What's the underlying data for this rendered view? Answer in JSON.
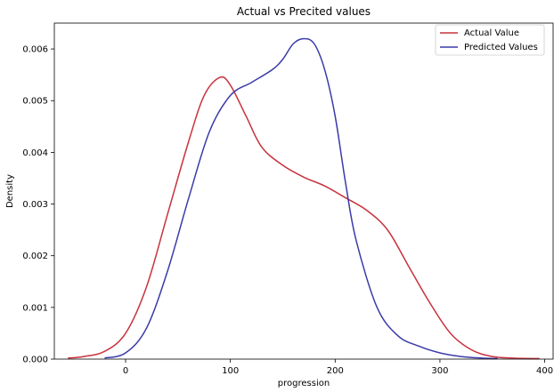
{
  "chart_data": {
    "type": "line",
    "title": "Actual vs Precited values",
    "xlabel": "progression",
    "ylabel": "Density",
    "xlim": [
      -68,
      408
    ],
    "ylim": [
      0,
      0.0065
    ],
    "xticks": [
      0,
      100,
      200,
      300,
      400
    ],
    "yticks": [
      0.0,
      0.001,
      0.002,
      0.003,
      0.004,
      0.005,
      0.006
    ],
    "ytick_labels": [
      "0.000",
      "0.001",
      "0.002",
      "0.003",
      "0.004",
      "0.005",
      "0.006"
    ],
    "grid": false,
    "legend_position": "top-right",
    "series": [
      {
        "name": "Actual Value",
        "color": "#c8323c",
        "x": [
          -55,
          -40,
          -20,
          0,
          20,
          40,
          60,
          75,
          90,
          100,
          115,
          130,
          150,
          170,
          190,
          210,
          230,
          250,
          270,
          290,
          310,
          330,
          350,
          370,
          395
        ],
        "y": [
          2e-05,
          5e-05,
          0.00015,
          0.0005,
          0.0014,
          0.0028,
          0.0042,
          0.0051,
          0.00545,
          0.0053,
          0.0047,
          0.0041,
          0.00375,
          0.00352,
          0.00335,
          0.00312,
          0.00288,
          0.0025,
          0.0018,
          0.0011,
          0.0005,
          0.00018,
          5e-05,
          2e-05,
          1e-05
        ]
      },
      {
        "name": "Predicted Values",
        "color": "#3a3aa8",
        "x": [
          -20,
          0,
          20,
          40,
          60,
          80,
          100,
          120,
          140,
          150,
          160,
          170,
          180,
          190,
          200,
          210,
          220,
          240,
          260,
          280,
          300,
          320,
          340,
          355
        ],
        "y": [
          2e-05,
          0.00012,
          0.0006,
          0.0017,
          0.0031,
          0.0044,
          0.0051,
          0.00535,
          0.0056,
          0.0058,
          0.0061,
          0.0062,
          0.0061,
          0.0056,
          0.0047,
          0.0034,
          0.0023,
          0.001,
          0.00045,
          0.00025,
          0.00012,
          5e-05,
          2e-05,
          1e-05
        ]
      }
    ]
  }
}
